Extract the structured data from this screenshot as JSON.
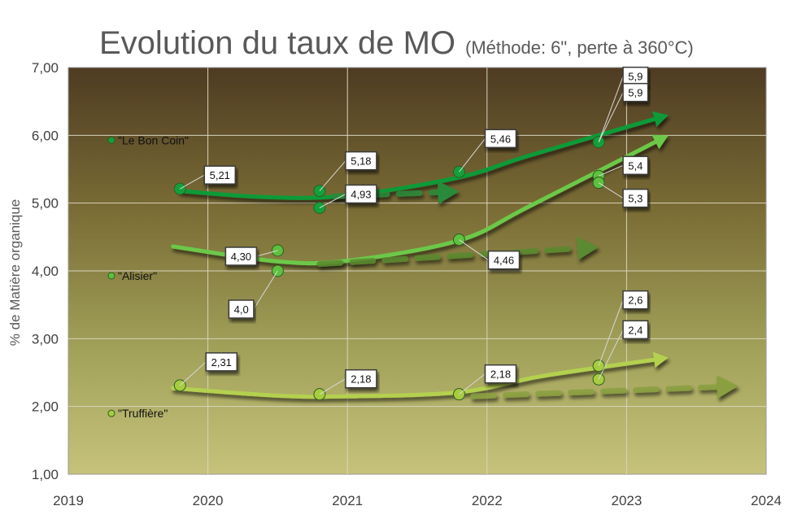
{
  "chart_data": {
    "type": "scatter",
    "title": "Evolution du taux de MO",
    "subtitle": "(Méthode: 6\", perte à 360°C)",
    "xlabel": "",
    "ylabel": "% de Matière organique",
    "xlim": [
      2019,
      2024
    ],
    "ylim": [
      1,
      7
    ],
    "x_ticks": [
      "2019",
      "2020",
      "2021",
      "2022",
      "2023",
      "2024"
    ],
    "y_ticks": [
      "1,00",
      "2,00",
      "3,00",
      "4,00",
      "5,00",
      "6,00",
      "7,00"
    ],
    "grid": true,
    "legend_position": "left",
    "series": [
      {
        "name": "\"Le Bon Coin\"",
        "color": "#13a03c",
        "points": [
          {
            "x": 2019.8,
            "y": 5.21,
            "label": "5,21"
          },
          {
            "x": 2020.8,
            "y": 5.18,
            "label": "5,18"
          },
          {
            "x": 2020.8,
            "y": 4.93,
            "label": "4,93"
          },
          {
            "x": 2021.8,
            "y": 5.46,
            "label": "5,46"
          },
          {
            "x": 2022.8,
            "y": 5.9,
            "label": "5,9"
          },
          {
            "x": 2022.8,
            "y": 5.9,
            "label": "5,9"
          }
        ]
      },
      {
        "name": "\"Alisier\"",
        "color": "#5ec040",
        "points": [
          {
            "x": 2020.5,
            "y": 4.3,
            "label": "4,30"
          },
          {
            "x": 2020.5,
            "y": 4.0,
            "label": "4,0"
          },
          {
            "x": 2021.8,
            "y": 4.46,
            "label": "4,46"
          },
          {
            "x": 2022.8,
            "y": 5.4,
            "label": "5,4"
          },
          {
            "x": 2022.8,
            "y": 5.3,
            "label": "5,3"
          }
        ]
      },
      {
        "name": "\"Truffière\"",
        "color": "#a8cc40",
        "points": [
          {
            "x": 2019.8,
            "y": 2.31,
            "label": "2,31"
          },
          {
            "x": 2020.8,
            "y": 2.18,
            "label": "2,18"
          },
          {
            "x": 2021.8,
            "y": 2.18,
            "label": "2,18"
          },
          {
            "x": 2022.8,
            "y": 2.6,
            "label": "2,6"
          },
          {
            "x": 2022.8,
            "y": 2.4,
            "label": "2,4"
          }
        ]
      }
    ],
    "trends": [
      {
        "series": "\"Le Bon Coin\"",
        "style": "curve",
        "color": "#109a38",
        "points": [
          [
            2019.8,
            5.18
          ],
          [
            2020.4,
            5.09
          ],
          [
            2021.0,
            5.11
          ],
          [
            2021.8,
            5.38
          ],
          [
            2022.3,
            5.7
          ],
          [
            2023.3,
            6.3
          ]
        ]
      },
      {
        "series": "\"Le Bon Coin\"",
        "style": "dashed",
        "color": "#2a8a3a",
        "points": [
          [
            2020.9,
            5.1
          ],
          [
            2021.8,
            5.17
          ]
        ]
      },
      {
        "series": "\"Alisier\"",
        "style": "curve",
        "color": "#6cc848",
        "points": [
          [
            2019.75,
            4.36
          ],
          [
            2020.5,
            4.14
          ],
          [
            2021.0,
            4.15
          ],
          [
            2021.8,
            4.45
          ],
          [
            2022.3,
            4.95
          ],
          [
            2023.3,
            6.0
          ]
        ]
      },
      {
        "series": "\"Alisier\"",
        "style": "dashed",
        "color": "#5a8a30",
        "points": [
          [
            2020.8,
            4.1
          ],
          [
            2022.8,
            4.35
          ]
        ]
      },
      {
        "series": "\"Truffière\"",
        "style": "curve",
        "color": "#b4d050",
        "points": [
          [
            2019.75,
            2.27
          ],
          [
            2020.5,
            2.16
          ],
          [
            2021.0,
            2.15
          ],
          [
            2021.8,
            2.21
          ],
          [
            2022.4,
            2.45
          ],
          [
            2023.3,
            2.72
          ]
        ]
      },
      {
        "series": "\"Truffière\"",
        "style": "dashed",
        "color": "#8aa040",
        "points": [
          [
            2021.9,
            2.15
          ],
          [
            2023.8,
            2.3
          ]
        ]
      }
    ]
  }
}
